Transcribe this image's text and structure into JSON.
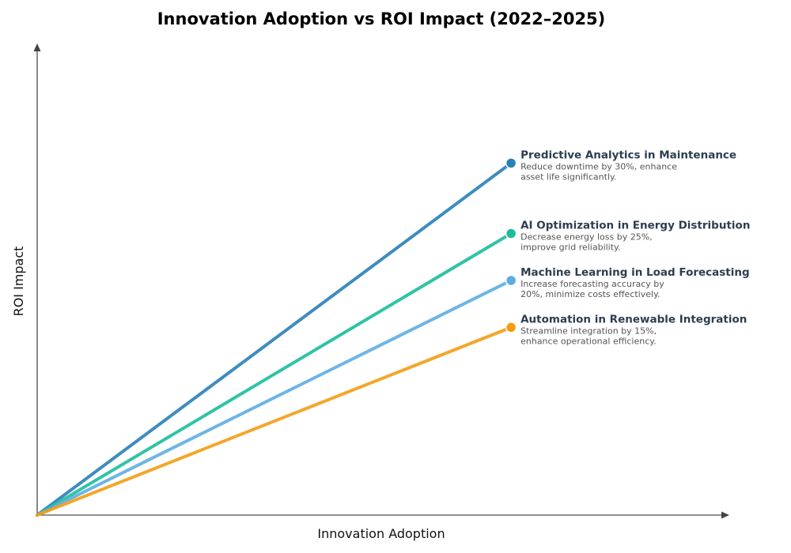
{
  "chart_data": {
    "type": "line",
    "title": "Innovation Adoption vs ROI Impact (2022–2025)",
    "xlabel": "Innovation Adoption",
    "ylabel": "ROI Impact",
    "xlim": [
      0,
      1.02
    ],
    "ylim": [
      0,
      1
    ],
    "grid": false,
    "ticks": false,
    "series": [
      {
        "name": "Predictive Analytics in Maintenance",
        "description": [
          "Reduce downtime by 30%, enhance",
          "asset life significantly."
        ],
        "color": "#2980b9",
        "x": [
          0,
          0.7
        ],
        "y": [
          0,
          0.75
        ]
      },
      {
        "name": "AI Optimization in Energy Distribution",
        "description": [
          "Decrease energy loss by 25%,",
          "improve grid reliability."
        ],
        "color": "#1abc9c",
        "x": [
          0,
          0.7
        ],
        "y": [
          0,
          0.6
        ]
      },
      {
        "name": "Machine Learning in Load Forecasting",
        "description": [
          "Increase forecasting accuracy by",
          "20%, minimize costs effectively."
        ],
        "color": "#5dade2",
        "x": [
          0,
          0.7
        ],
        "y": [
          0,
          0.5
        ]
      },
      {
        "name": "Automation in Renewable Integration",
        "description": [
          "Streamline integration by 15%,",
          "enhance operational efficiency."
        ],
        "color": "#f39c12",
        "x": [
          0,
          0.7
        ],
        "y": [
          0,
          0.4
        ]
      }
    ]
  }
}
